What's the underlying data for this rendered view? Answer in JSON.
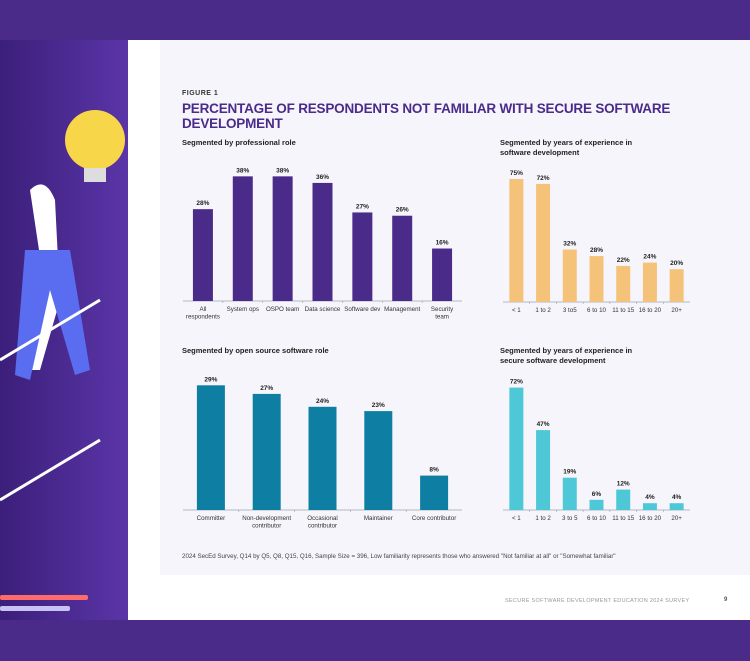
{
  "figure_label": "FIGURE 1",
  "title": "PERCENTAGE OF RESPONDENTS NOT FAMILIAR WITH SECURE SOFTWARE DEVELOPMENT",
  "note": "2024 SecEd Survey, Q14 by Q5, Q8, Q15, Q16, Sample Size = 396, Low familiarity represents those who answered \"Not familiar at all\" or \"Somewhat familiar\"",
  "footer": "SECURE SOFTWARE DEVELOPMENT EDUCATION 2024 SURVEY",
  "page_number": "9",
  "chart_data": [
    {
      "type": "bar",
      "title": "Segmented by professional role",
      "color": "#4a2b8a",
      "categories": [
        "All respondents",
        "System ops",
        "OSPO team",
        "Data science",
        "Software dev",
        "Management",
        "Security team"
      ],
      "values": [
        28,
        38,
        38,
        36,
        27,
        26,
        16
      ],
      "data_labels": [
        "28%",
        "38%",
        "38%",
        "36%",
        "27%",
        "26%",
        "16%"
      ]
    },
    {
      "type": "bar",
      "title": "Segmented by years of experience in software development",
      "color": "#f5c27a",
      "categories": [
        "< 1",
        "1 to 2",
        "3 to5",
        "6 to 10",
        "11 to 15",
        "16 to 20",
        "20+"
      ],
      "values": [
        75,
        72,
        32,
        28,
        22,
        24,
        20
      ],
      "data_labels": [
        "75%",
        "72%",
        "32%",
        "28%",
        "22%",
        "24%",
        "20%"
      ]
    },
    {
      "type": "bar",
      "title": "Segmented by open source software role",
      "color": "#0f7ea3",
      "categories": [
        "Committer",
        "Non-development contributor",
        "Occasional contributor",
        "Maintainer",
        "Core contributor"
      ],
      "values": [
        29,
        27,
        24,
        23,
        8
      ],
      "data_labels": [
        "29%",
        "27%",
        "24%",
        "23%",
        "8%"
      ]
    },
    {
      "type": "bar",
      "title": "Segmented by years of experience in secure software development",
      "color": "#4ec8d6",
      "categories": [
        "< 1",
        "1 to 2",
        "3 to 5",
        "6 to 10",
        "11 to 15",
        "16 to 20",
        "20+"
      ],
      "values": [
        72,
        47,
        19,
        6,
        12,
        4,
        4
      ],
      "data_labels": [
        "72%",
        "47%",
        "19%",
        "6%",
        "12%",
        "4%",
        "4%"
      ]
    }
  ]
}
